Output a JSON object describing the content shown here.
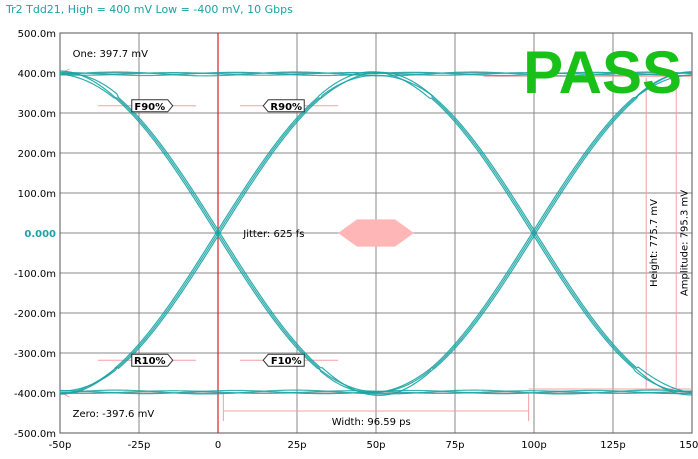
{
  "chart_data": {
    "type": "line",
    "title": "Tr2 Tdd21, High = 400 mV Low = -400 mV, 10 Gbps",
    "xlabel": "",
    "ylabel": "",
    "x_ticks": [
      "-50p",
      "-25p",
      "0",
      "25p",
      "50p",
      "75p",
      "100p",
      "125p",
      "150p"
    ],
    "x_tick_values": [
      -50,
      -25,
      0,
      25,
      50,
      75,
      100,
      125,
      150
    ],
    "y_ticks": [
      "500.0m",
      "400.0m",
      "300.0m",
      "200.0m",
      "100.0m",
      "0.000",
      "-100.0m",
      "-200.0m",
      "-300.0m",
      "-400.0m",
      "-500.0m"
    ],
    "y_tick_values": [
      500,
      400,
      300,
      200,
      100,
      0,
      -100,
      -200,
      -300,
      -400,
      -500
    ],
    "xlim": [
      -50,
      150
    ],
    "ylim": [
      -500,
      500
    ],
    "grid": true,
    "unit_time": "ps",
    "unit_amplitude": "mV",
    "bit_period": 100,
    "crossings": [
      0,
      100
    ],
    "levels": {
      "one": 397.7,
      "zero": -397.6
    },
    "status": "PASS",
    "annotations": {
      "one": "One: 397.7 mV",
      "zero": "Zero: -397.6 mV",
      "jitter": "Jitter: 625 fs",
      "width": "Width: 96.59 ps",
      "height": "Height: 775.7 mV",
      "amplitude": "Amplitude: 795.3 mV"
    },
    "markers": [
      {
        "label": "F90%",
        "x": -14,
        "y": 318
      },
      {
        "label": "R90%",
        "x": 14,
        "y": 318
      },
      {
        "label": "R10%",
        "x": -14,
        "y": -318
      },
      {
        "label": "F10%",
        "x": 14,
        "y": -318
      }
    ],
    "mask": {
      "x": [
        38,
        44,
        56,
        62,
        56,
        44
      ],
      "y": [
        0,
        34,
        34,
        0,
        -34,
        -34
      ]
    },
    "colors": {
      "trace": "#1aa3a3",
      "grid": "#888888",
      "mask": "#ffb6b6",
      "pass": "#18c018",
      "crossing": "#dd2222",
      "title": "#1aa3a3"
    }
  }
}
